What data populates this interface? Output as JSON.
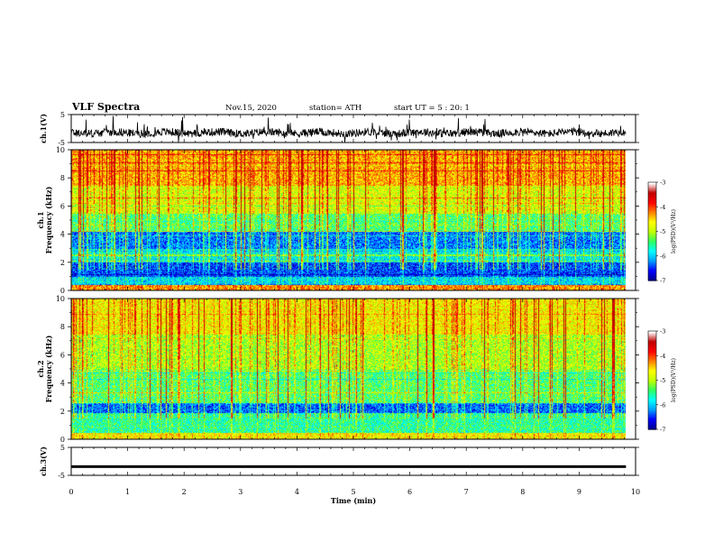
{
  "header": {
    "title": "VLF Spectra",
    "date": "Nov.15, 2020",
    "station": "station= ATH",
    "start_ut": "start  UT =   5 : 20: 1"
  },
  "chart_data": [
    {
      "id": "ch1-waveform",
      "type": "line",
      "ylabel": "ch.1(V)",
      "yticks": [
        "5",
        "-5"
      ],
      "ylim": [
        -5,
        5
      ],
      "xlim": [
        0,
        10
      ],
      "x_extent": 9.83,
      "baseline": -1.5,
      "amplitude": 3.2
    },
    {
      "id": "ch1-spectrogram",
      "type": "heatmap",
      "ylabel": "ch.1\nFrequency (kHz)",
      "ylabel_lines": [
        "ch.1",
        "Frequency (kHz)"
      ],
      "yticks": [
        "0",
        "2",
        "4",
        "6",
        "8",
        "10"
      ],
      "ylim": [
        0,
        10
      ],
      "xlim": [
        0,
        10
      ],
      "x_extent": 9.83,
      "colorbar": {
        "label": "log(PSD)(V²/Hz)",
        "ticks": [
          "-3",
          "-4",
          "-5",
          "-6",
          "-7"
        ],
        "range": [
          -7,
          -3
        ],
        "colormap": [
          "#00008f",
          "#0000ff",
          "#00a0ff",
          "#00ffff",
          "#30ff60",
          "#c0ff00",
          "#ffff00",
          "#ff8000",
          "#ff0000",
          "#c00000",
          "#ffffff"
        ]
      },
      "bands": [
        {
          "from": 0,
          "to": 0.4,
          "level": -4.0
        },
        {
          "from": 0.4,
          "to": 1.0,
          "level": -5.8
        },
        {
          "from": 1.0,
          "to": 2.0,
          "level": -6.4
        },
        {
          "from": 2.0,
          "to": 3.0,
          "level": -5.7
        },
        {
          "from": 3.0,
          "to": 4.2,
          "level": -6.2
        },
        {
          "from": 4.2,
          "to": 5.5,
          "level": -5.2
        },
        {
          "from": 5.5,
          "to": 7.5,
          "level": -4.6
        },
        {
          "from": 7.5,
          "to": 10,
          "level": -4.1
        }
      ]
    },
    {
      "id": "ch2-spectrogram",
      "type": "heatmap",
      "ylabel": "ch.2\nFrequency (kHz)",
      "ylabel_lines": [
        "ch.2",
        "Frequency (kHz)"
      ],
      "yticks": [
        "0",
        "2",
        "4",
        "6",
        "8",
        "10"
      ],
      "ylim": [
        0,
        10
      ],
      "xlim": [
        0,
        10
      ],
      "x_extent": 9.83,
      "colorbar": {
        "label": "log(PSD)(V²/Hz)",
        "ticks": [
          "-3",
          "-4",
          "-5",
          "-6",
          "-7"
        ],
        "range": [
          -7,
          -3
        ],
        "colormap": [
          "#00008f",
          "#0000ff",
          "#00a0ff",
          "#00ffff",
          "#30ff60",
          "#c0ff00",
          "#ffff00",
          "#ff8000",
          "#ff0000",
          "#c00000",
          "#ffffff"
        ]
      },
      "bands": [
        {
          "from": 0,
          "to": 0.5,
          "level": -4.4
        },
        {
          "from": 0.5,
          "to": 1.9,
          "level": -5.4
        },
        {
          "from": 1.9,
          "to": 2.6,
          "level": -6.3
        },
        {
          "from": 2.6,
          "to": 5.0,
          "level": -5.2
        },
        {
          "from": 5.0,
          "to": 7.5,
          "level": -4.8
        },
        {
          "from": 7.5,
          "to": 10,
          "level": -4.4
        }
      ]
    },
    {
      "id": "ch3-waveform",
      "type": "line",
      "ylabel": "ch.3(V)",
      "yticks": [
        "5",
        "-5"
      ],
      "ylim": [
        -5,
        5
      ],
      "xlim": [
        0,
        10
      ],
      "x_extent": 9.83,
      "baseline": -1.8,
      "amplitude": 0.4
    }
  ],
  "x_axis": {
    "label": "Time (min)",
    "ticks": [
      "0",
      "1",
      "2",
      "3",
      "4",
      "5",
      "6",
      "7",
      "8",
      "9",
      "10"
    ],
    "range": [
      0,
      10
    ]
  }
}
